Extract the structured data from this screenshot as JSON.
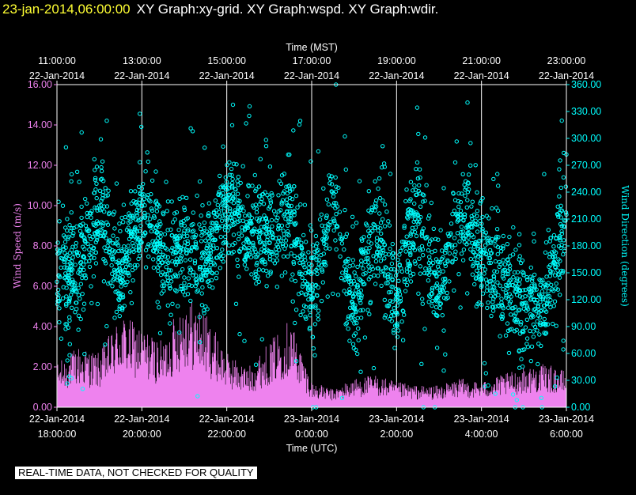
{
  "header": {
    "timestamp": "23-jan-2014,06:00:00",
    "graphs": "XY Graph:xy-grid.  XY Graph:wspd.  XY Graph:wdir."
  },
  "footer": {
    "qc_notice": "REAL-TIME DATA, NOT CHECKED FOR QUALITY"
  },
  "colors": {
    "wspd": "#ee82ee",
    "wdir": "#00ffff",
    "text": "#ffffff",
    "grid": "#ffffff"
  },
  "chart_data": {
    "type": "scatter",
    "top_axis": {
      "title": "Time (MST)",
      "ticks": [
        {
          "time": "11:00:00",
          "date": "22-Jan-2014"
        },
        {
          "time": "13:00:00",
          "date": "22-Jan-2014"
        },
        {
          "time": "15:00:00",
          "date": "22-Jan-2014"
        },
        {
          "time": "17:00:00",
          "date": "22-Jan-2014"
        },
        {
          "time": "19:00:00",
          "date": "22-Jan-2014"
        },
        {
          "time": "21:00:00",
          "date": "22-Jan-2014"
        },
        {
          "time": "23:00:00",
          "date": "22-Jan-2014"
        }
      ]
    },
    "bottom_axis": {
      "title": "Time (UTC)",
      "range_hours": [
        18,
        30
      ],
      "ticks": [
        {
          "date": "22-Jan-2014",
          "time": "18:00:00"
        },
        {
          "date": "22-Jan-2014",
          "time": "20:00:00"
        },
        {
          "date": "22-Jan-2014",
          "time": "22:00:00"
        },
        {
          "date": "23-Jan-2014",
          "time": "0:00:00"
        },
        {
          "date": "23-Jan-2014",
          "time": "2:00:00"
        },
        {
          "date": "23-Jan-2014",
          "time": "4:00:00"
        },
        {
          "date": "23-Jan-2014",
          "time": "6:00:00"
        }
      ]
    },
    "left_axis": {
      "label": "Wind Speed (m/s)",
      "range": [
        0,
        16
      ],
      "ticks": [
        "0.00",
        "2.00",
        "4.00",
        "6.00",
        "8.00",
        "10.00",
        "12.00",
        "14.00",
        "16.00"
      ]
    },
    "right_axis": {
      "label": "Wind Direction (degrees)",
      "range": [
        0,
        360
      ],
      "ticks": [
        "0.00",
        "30.00",
        "60.00",
        "90.00",
        "120.00",
        "150.00",
        "180.00",
        "210.00",
        "240.00",
        "270.00",
        "300.00",
        "330.00",
        "360.00"
      ]
    },
    "grid": "vertical",
    "series": [
      {
        "id": "wspd",
        "style": "vertical-lines",
        "axis": "left",
        "points": [
          [
            18.0,
            1.2
          ],
          [
            18.5,
            1.7
          ],
          [
            19.0,
            1.5
          ],
          [
            19.5,
            2.6
          ],
          [
            20.0,
            2.2
          ],
          [
            20.5,
            1.8
          ],
          [
            21.0,
            3.2
          ],
          [
            21.5,
            2.6
          ],
          [
            22.0,
            1.5
          ],
          [
            22.5,
            1.1
          ],
          [
            23.0,
            1.8
          ],
          [
            23.5,
            2.5
          ],
          [
            24.0,
            0.7
          ],
          [
            24.5,
            0.5
          ],
          [
            25.0,
            0.8
          ],
          [
            25.5,
            0.9
          ],
          [
            26.0,
            0.7
          ],
          [
            26.5,
            0.6
          ],
          [
            27.0,
            0.6
          ],
          [
            27.5,
            0.8
          ],
          [
            28.0,
            0.7
          ],
          [
            28.5,
            0.9
          ],
          [
            29.0,
            1.1
          ],
          [
            29.5,
            1.2
          ],
          [
            30.0,
            1.0
          ]
        ]
      },
      {
        "id": "wdir",
        "style": "open-circles",
        "axis": "right",
        "points": [
          [
            18.0,
            140
          ],
          [
            18.5,
            150
          ],
          [
            19.0,
            225
          ],
          [
            19.5,
            140
          ],
          [
            20.0,
            225
          ],
          [
            20.5,
            170
          ],
          [
            21.0,
            180
          ],
          [
            21.5,
            160
          ],
          [
            22.0,
            230
          ],
          [
            22.5,
            200
          ],
          [
            23.0,
            195
          ],
          [
            23.5,
            210
          ],
          [
            24.0,
            120
          ],
          [
            24.5,
            225
          ],
          [
            25.0,
            110
          ],
          [
            25.5,
            200
          ],
          [
            26.0,
            120
          ],
          [
            26.5,
            215
          ],
          [
            27.0,
            125
          ],
          [
            27.5,
            215
          ],
          [
            28.0,
            170
          ],
          [
            28.5,
            150
          ],
          [
            29.0,
            110
          ],
          [
            29.5,
            120
          ],
          [
            30.0,
            215
          ]
        ]
      }
    ]
  }
}
